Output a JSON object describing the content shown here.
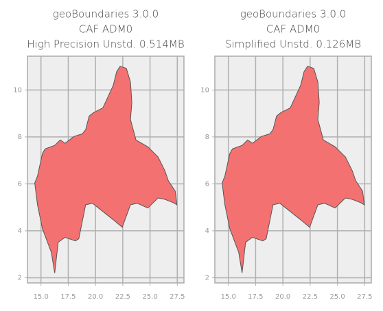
{
  "chart_data": [
    {
      "type": "polygon",
      "title": [
        "geoBoundaries 3.0.0",
        "CAF ADM0",
        "High Precision Unstd. 0.514MB"
      ],
      "x": [
        14.43,
        14.68,
        15.13,
        15.38,
        16.26,
        16.77,
        17.21,
        18.03,
        18.79,
        19.1,
        19.42,
        19.8,
        20.68,
        21.19,
        21.63,
        21.94,
        22.26,
        22.83,
        23.21,
        23.33,
        23.21,
        23.71,
        24.79,
        25.73,
        26.36,
        26.68,
        27.31,
        27.46,
        27.12,
        26.36,
        25.73,
        24.79,
        23.84,
        23.21,
        22.45,
        21.63,
        20.68,
        19.73,
        19.1,
        18.47,
        18.16,
        17.21,
        16.58,
        16.26,
        15.95,
        15.13,
        14.68,
        14.43
      ],
      "y": [
        6.04,
        6.33,
        7.29,
        7.49,
        7.64,
        7.87,
        7.73,
        8.02,
        8.13,
        8.31,
        8.89,
        9.03,
        9.24,
        9.76,
        10.2,
        10.78,
        11.01,
        10.92,
        10.34,
        9.47,
        8.74,
        7.87,
        7.58,
        7.15,
        6.56,
        6.13,
        5.69,
        5.11,
        5.2,
        5.34,
        5.4,
        4.97,
        5.17,
        5.11,
        4.15,
        4.47,
        4.82,
        5.17,
        5.11,
        3.66,
        3.57,
        3.72,
        3.51,
        2.2,
        3.08,
        4.09,
        5.11,
        6.04
      ],
      "color": "#f47171",
      "edgecolor": "#555555",
      "xlim": [
        13.76,
        28.11
      ],
      "ylim": [
        1.78,
        11.44
      ],
      "xticks": [
        {
          "value": 15,
          "label": "15.0"
        },
        17.5,
        {
          "value": 20,
          "label": "20.0"
        },
        22.5,
        {
          "value": 25,
          "label": "25.0"
        },
        27.5
      ],
      "yticks": [
        2,
        4,
        6,
        8,
        10
      ],
      "grid": true
    },
    {
      "type": "polygon",
      "title": [
        "geoBoundaries 3.0.0",
        "CAF ADM0",
        "Simplified Unstd. 0.126MB"
      ],
      "x": [
        14.43,
        14.68,
        15.13,
        15.38,
        16.26,
        16.77,
        17.21,
        18.03,
        18.79,
        19.1,
        19.42,
        19.8,
        20.68,
        21.19,
        21.63,
        21.94,
        22.26,
        22.83,
        23.21,
        23.33,
        23.21,
        23.71,
        24.79,
        25.73,
        26.36,
        26.68,
        27.31,
        27.46,
        27.12,
        26.36,
        25.73,
        24.79,
        23.84,
        23.21,
        22.45,
        21.63,
        20.68,
        19.73,
        19.1,
        18.47,
        18.16,
        17.21,
        16.58,
        16.26,
        15.95,
        15.13,
        14.68,
        14.43
      ],
      "y": [
        6.04,
        6.33,
        7.29,
        7.49,
        7.64,
        7.87,
        7.73,
        8.02,
        8.13,
        8.31,
        8.89,
        9.03,
        9.24,
        9.76,
        10.2,
        10.78,
        11.01,
        10.92,
        10.34,
        9.47,
        8.74,
        7.87,
        7.58,
        7.15,
        6.56,
        6.13,
        5.69,
        5.11,
        5.2,
        5.34,
        5.4,
        4.97,
        5.17,
        5.11,
        4.15,
        4.47,
        4.82,
        5.17,
        5.11,
        3.66,
        3.57,
        3.72,
        3.51,
        2.2,
        3.08,
        4.09,
        5.11,
        6.04
      ],
      "color": "#f47171",
      "edgecolor": "#555555",
      "xlim": [
        13.76,
        28.11
      ],
      "ylim": [
        1.78,
        11.44
      ],
      "xticks": [
        {
          "value": 15,
          "label": "15.0"
        },
        17.5,
        {
          "value": 20,
          "label": "20.0"
        },
        22.5,
        {
          "value": 25,
          "label": "25.0"
        },
        27.5
      ],
      "yticks": [
        2,
        4,
        6,
        8,
        10
      ],
      "grid": true
    }
  ]
}
